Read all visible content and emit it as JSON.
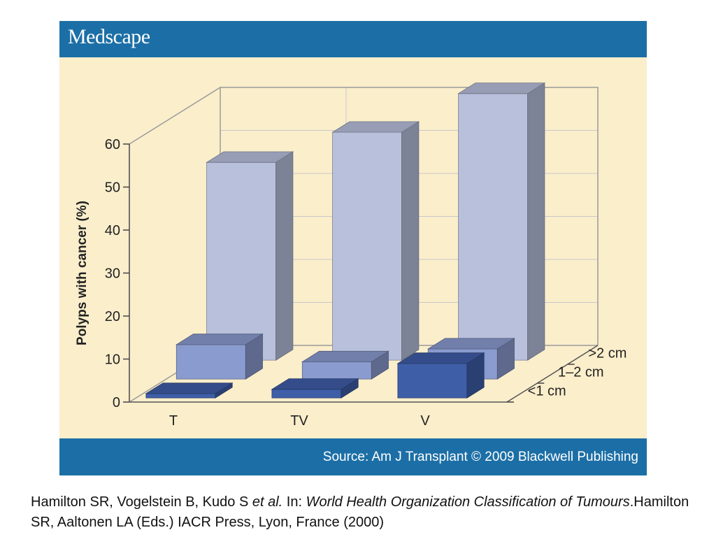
{
  "header": {
    "brand": "Medscape"
  },
  "footer": {
    "source": "Source: Am J Transplant © 2009 Blackwell Publishing"
  },
  "citation": {
    "part1": "Hamilton SR, Vogelstein B, Kudo S ",
    "part2": "et al.",
    "part3": " In: ",
    "part4": "World Health Organization Classification of Tumours",
    "part5": ".Hamilton SR, Aaltonen LA (Eds.) IACR Press, Lyon, France (2000)"
  },
  "colors": {
    "background": "#fbeecb",
    "bar": "#1c6fa6",
    "series_gt2": "#b8c0dc",
    "series_1_2": "#8a9bcf",
    "series_lt1": "#3f5ea8"
  },
  "chart_data": {
    "type": "bar",
    "style": "3d-grouped-depth",
    "categories": [
      "T",
      "TV",
      "V"
    ],
    "ylabel": "Polyps with cancer (%)",
    "ylim": [
      0,
      60
    ],
    "yticks": [
      0,
      10,
      20,
      30,
      40,
      50,
      60
    ],
    "grid": true,
    "series": [
      {
        "name": "<1 cm",
        "values": [
          1,
          2,
          8
        ]
      },
      {
        "name": "1–2 cm",
        "values": [
          8,
          4,
          7
        ]
      },
      {
        "name": ">2 cm",
        "values": [
          46,
          53,
          62
        ]
      }
    ]
  }
}
